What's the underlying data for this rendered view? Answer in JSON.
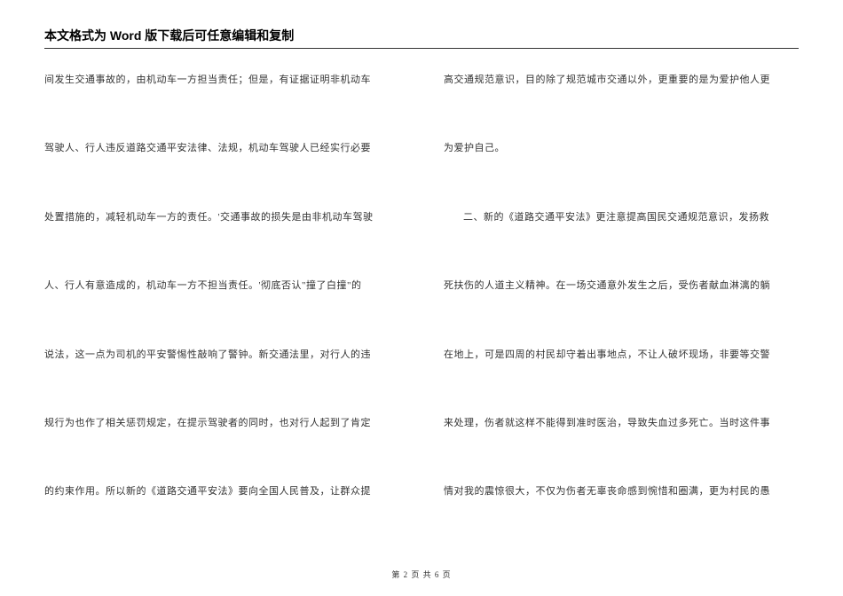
{
  "header": {
    "title": "本文格式为 Word 版下载后可任意编辑和复制"
  },
  "leftColumn": {
    "lines": [
      {
        "text": "间发生交通事故的，由机动车一方担当责任；但是，有证据证明非机动车",
        "indent": false
      },
      {
        "text": "驾驶人、行人违反道路交通平安法律、法规，机动车驾驶人已经实行必要",
        "indent": false
      },
      {
        "text": "处置措施的，减轻机动车一方的责任。'交通事故的损失是由非机动车驾驶",
        "indent": false
      },
      {
        "text": "人、行人有意造成的，机动车一方不担当责任。'彻底否认\"撞了白撞\"的",
        "indent": false
      },
      {
        "text": "说法，这一点为司机的平安警惕性敲响了警钟。新交通法里，对行人的违",
        "indent": false
      },
      {
        "text": "规行为也作了相关惩罚规定，在提示驾驶者的同时，也对行人起到了肯定",
        "indent": false
      },
      {
        "text": "的约束作用。所以新的《道路交通平安法》要向全国人民普及，让群众提",
        "indent": false
      }
    ]
  },
  "rightColumn": {
    "lines": [
      {
        "text": "高交通规范意识，目的除了规范城市交通以外，更重要的是为爱护他人更",
        "indent": false
      },
      {
        "text": "为爱护自己。",
        "indent": false
      },
      {
        "text": "二、新的《道路交通平安法》更注意提高国民交通规范意识，发扬救",
        "indent": true
      },
      {
        "text": "死扶伤的人道主义精神。在一场交通意外发生之后，受伤者献血淋漓的躺",
        "indent": false
      },
      {
        "text": "在地上，可是四周的村民却守着出事地点，不让人破坏现场，非要等交警",
        "indent": false
      },
      {
        "text": "来处理，伤者就这样不能得到准时医治，导致失血过多死亡。当时这件事",
        "indent": false
      },
      {
        "text": "情对我的震惊很大，不仅为伤者无辜丧命感到惋惜和圈满，更为村民的愚",
        "indent": false
      }
    ]
  },
  "footer": {
    "text": "第 2 页 共 6 页"
  }
}
